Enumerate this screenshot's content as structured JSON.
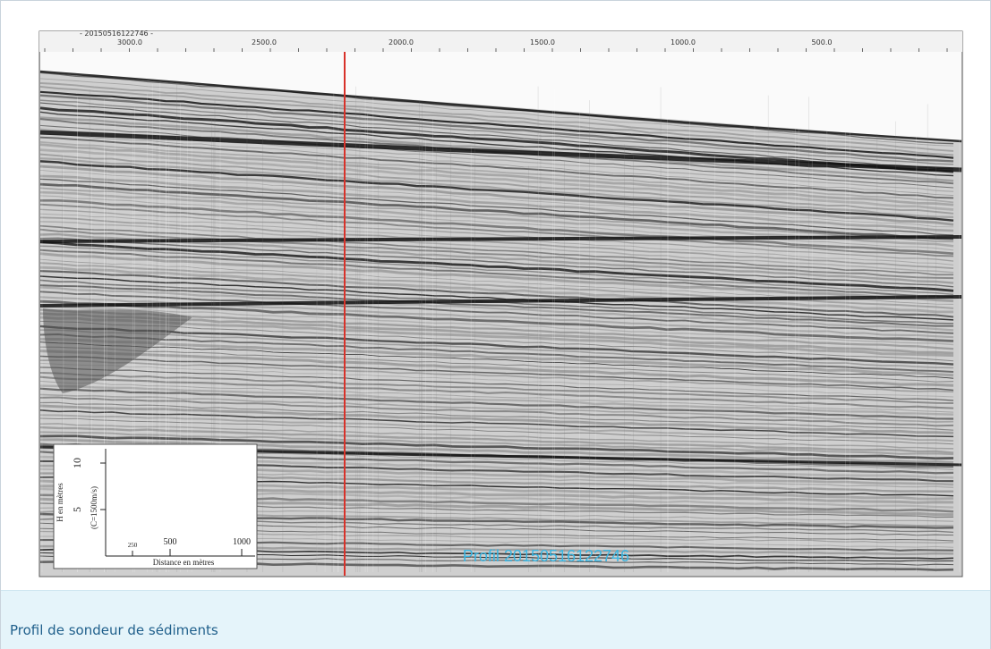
{
  "figure": {
    "header_label": "- 20150516122746 -",
    "axis_labels": [
      "3000.0",
      "2500.0",
      "2000.0",
      "1500.0",
      "1000.0",
      "500.0"
    ],
    "scale": {
      "vertical_labels": [
        "10",
        "5"
      ],
      "vertical_title": "H en mètres",
      "velocity": "(C=1500m/s)",
      "horizontal_labels": [
        "250",
        "500",
        "1000"
      ],
      "horizontal_title": "Distance en mètres"
    },
    "overlay": "Profil 20150516122746"
  },
  "caption": "Profil de sondeur de sédiments"
}
